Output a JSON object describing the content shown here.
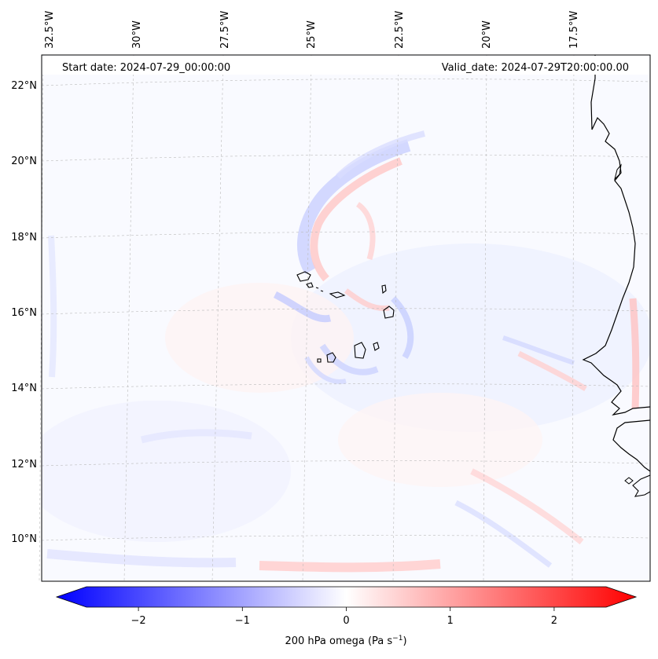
{
  "header": {
    "start_date": "Start date: 2024-07-29_00:00:00",
    "valid_date": "Valid_date: 2024-07-29T20:00:00.00"
  },
  "map": {
    "lon_labels": [
      "32.5°W",
      "30°W",
      "27.5°W",
      "25°W",
      "22.5°W",
      "20°W",
      "17.5°W"
    ],
    "lat_labels": [
      "22°N",
      "20°N",
      "18°N",
      "16°N",
      "14°N",
      "12°N",
      "10°N"
    ],
    "extent": {
      "lon_min": -32.6,
      "lon_max": -16.0,
      "lat_min": 8.8,
      "lat_max": 22.8
    },
    "colors": {
      "negative": "#0000ff",
      "neutral": "#ffffff",
      "positive": "#ff0000",
      "coast": "#000000",
      "grid": "#bbbbbb"
    }
  },
  "colorbar": {
    "label_main": "200 hPa omega (Pa s",
    "label_exp": "−1",
    "label_close": ")",
    "range": [
      -2.6,
      2.6
    ],
    "ticks": [
      {
        "value": -2,
        "text": "−2"
      },
      {
        "value": -1,
        "text": "−1"
      },
      {
        "value": 0,
        "text": "0"
      },
      {
        "value": 1,
        "text": "1"
      },
      {
        "value": 2,
        "text": "2"
      }
    ]
  }
}
